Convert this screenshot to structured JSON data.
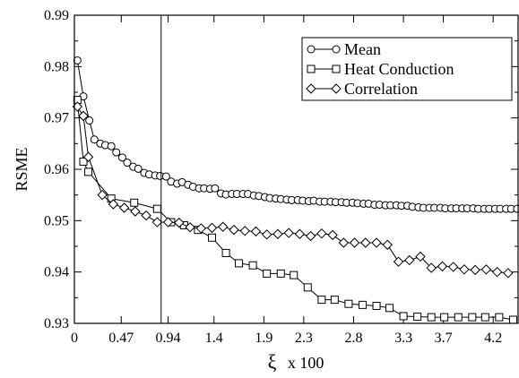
{
  "chart_data": {
    "type": "line",
    "xlabel_symbol": "ξ",
    "xlabel_suffix": "x 100",
    "ylabel": "RSME",
    "xlim": [
      0,
      4.45
    ],
    "ylim": [
      0.93,
      0.99
    ],
    "x_ticks": [
      0,
      0.47,
      0.94,
      1.4,
      1.9,
      2.3,
      2.8,
      3.3,
      3.7,
      4.2
    ],
    "x_tick_labels": [
      "0",
      "0.47",
      "0.94",
      "1.4",
      "1.9",
      "2.3",
      "2.8",
      "3.3",
      "3.7",
      "4.2"
    ],
    "y_ticks": [
      0.93,
      0.94,
      0.95,
      0.96,
      0.97,
      0.98,
      0.99
    ],
    "y_tick_labels": [
      "0.93",
      "0.94",
      "0.95",
      "0.96",
      "0.97",
      "0.98",
      "0.99"
    ],
    "vertical_line_x": 0.87,
    "legend_position": "top-right",
    "series": [
      {
        "name": "Mean",
        "marker": "circle",
        "x": [
          0.03,
          0.09,
          0.15,
          0.2,
          0.26,
          0.31,
          0.37,
          0.42,
          0.48,
          0.53,
          0.59,
          0.64,
          0.7,
          0.75,
          0.81,
          0.86,
          0.92,
          0.97,
          1.03,
          1.08,
          1.14,
          1.19,
          1.25,
          1.3,
          1.36,
          1.41,
          1.47,
          1.52,
          1.58,
          1.63,
          1.69,
          1.74,
          1.8,
          1.85,
          1.91,
          1.96,
          2.02,
          2.07,
          2.13,
          2.18,
          2.24,
          2.29,
          2.35,
          2.4,
          2.46,
          2.51,
          2.57,
          2.62,
          2.68,
          2.73,
          2.79,
          2.84,
          2.9,
          2.95,
          3.01,
          3.06,
          3.12,
          3.17,
          3.23,
          3.28,
          3.34,
          3.39,
          3.45,
          3.5,
          3.56,
          3.61,
          3.67,
          3.72,
          3.78,
          3.83,
          3.89,
          3.94,
          4.0,
          4.05,
          4.11,
          4.16,
          4.22,
          4.27,
          4.33,
          4.38,
          4.44
        ],
        "values": [
          0.9812,
          0.9742,
          0.9695,
          0.9658,
          0.965,
          0.9647,
          0.9645,
          0.9633,
          0.9623,
          0.9613,
          0.9605,
          0.9601,
          0.9593,
          0.959,
          0.9588,
          0.9587,
          0.9586,
          0.9576,
          0.9572,
          0.9575,
          0.957,
          0.9566,
          0.9563,
          0.9563,
          0.9562,
          0.9563,
          0.9553,
          0.9551,
          0.9552,
          0.9552,
          0.9552,
          0.9552,
          0.9549,
          0.9548,
          0.9546,
          0.9544,
          0.9543,
          0.9542,
          0.9541,
          0.954,
          0.954,
          0.9539,
          0.9538,
          0.9539,
          0.9537,
          0.9537,
          0.9537,
          0.9536,
          0.9536,
          0.9535,
          0.9535,
          0.9534,
          0.9533,
          0.9533,
          0.9531,
          0.9531,
          0.953,
          0.953,
          0.953,
          0.9529,
          0.9529,
          0.9527,
          0.9526,
          0.9525,
          0.9525,
          0.9525,
          0.9525,
          0.9524,
          0.9524,
          0.9524,
          0.9524,
          0.9524,
          0.9524,
          0.9523,
          0.9523,
          0.9523,
          0.9523,
          0.9523,
          0.9523,
          0.9523,
          0.9523
        ]
      },
      {
        "name": "Heat Conduction",
        "marker": "square",
        "x": [
          0.03,
          0.09,
          0.14,
          0.37,
          0.6,
          0.83,
          0.97,
          1.1,
          1.24,
          1.38,
          1.52,
          1.65,
          1.79,
          1.93,
          2.07,
          2.2,
          2.34,
          2.48,
          2.61,
          2.75,
          2.89,
          3.03,
          3.16,
          3.3,
          3.44,
          3.58,
          3.71,
          3.85,
          3.99,
          4.12,
          4.26,
          4.4
        ],
        "values": [
          0.9735,
          0.9615,
          0.9595,
          0.9543,
          0.9535,
          0.9523,
          0.9497,
          0.9491,
          0.9482,
          0.9467,
          0.9437,
          0.9417,
          0.9413,
          0.9397,
          0.9397,
          0.9394,
          0.937,
          0.9346,
          0.9346,
          0.9338,
          0.9336,
          0.9334,
          0.933,
          0.9314,
          0.9313,
          0.9312,
          0.9312,
          0.9312,
          0.9312,
          0.9312,
          0.9312,
          0.9307
        ]
      },
      {
        "name": "Correlation",
        "marker": "diamond",
        "x": [
          0.03,
          0.09,
          0.14,
          0.28,
          0.39,
          0.5,
          0.61,
          0.72,
          0.83,
          0.94,
          1.05,
          1.16,
          1.27,
          1.38,
          1.49,
          1.6,
          1.71,
          1.82,
          1.93,
          2.04,
          2.15,
          2.26,
          2.37,
          2.48,
          2.59,
          2.7,
          2.81,
          2.92,
          3.03,
          3.14,
          3.25,
          3.36,
          3.47,
          3.58,
          3.69,
          3.8,
          3.91,
          4.02,
          4.13,
          4.24,
          4.35
        ],
        "values": [
          0.9722,
          0.9704,
          0.9624,
          0.955,
          0.9532,
          0.9525,
          0.9518,
          0.951,
          0.9497,
          0.9497,
          0.9496,
          0.9487,
          0.9485,
          0.9486,
          0.9488,
          0.9482,
          0.948,
          0.9479,
          0.9473,
          0.9474,
          0.9476,
          0.9474,
          0.947,
          0.9475,
          0.9472,
          0.9457,
          0.9457,
          0.9457,
          0.9457,
          0.9453,
          0.942,
          0.9423,
          0.943,
          0.9408,
          0.9411,
          0.941,
          0.9405,
          0.9404,
          0.9405,
          0.94,
          0.9398
        ]
      }
    ]
  }
}
